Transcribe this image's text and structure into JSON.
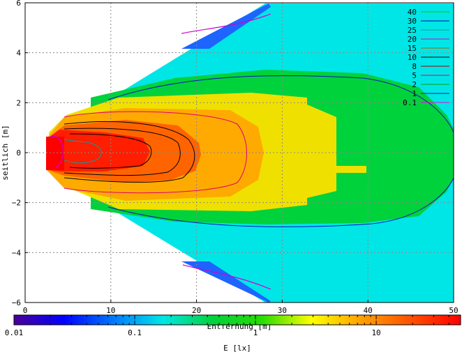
{
  "chart_data": {
    "type": "heatmap",
    "xlabel": "Entfernung [m]",
    "ylabel": "seitlich [m]",
    "xlim": [
      0,
      50
    ],
    "ylim": [
      -6,
      6
    ],
    "x_ticks": [
      0,
      10,
      20,
      30,
      40,
      50
    ],
    "y_ticks": [
      -6,
      -4,
      -2,
      0,
      2,
      4,
      6
    ],
    "grid": true,
    "legend_position": "top-right",
    "contour_levels": [
      {
        "level": "40",
        "color": "#00c000"
      },
      {
        "level": "30",
        "color": "#0000b0"
      },
      {
        "level": "25",
        "color": "#00a0a0"
      },
      {
        "level": "20",
        "color": "#d000d0"
      },
      {
        "level": "15",
        "color": "#b06000"
      },
      {
        "level": "10",
        "color": "#000000"
      },
      {
        "level": "8",
        "color": "#a00000"
      },
      {
        "level": "5",
        "color": "#e00070"
      },
      {
        "level": "2",
        "color": "#00a000"
      },
      {
        "level": "1",
        "color": "#1010c0"
      },
      {
        "level": "0.1",
        "color": "#e010e0"
      }
    ],
    "colorbar": {
      "label": "E [lx]",
      "scale": "log",
      "range": [
        0.01,
        50
      ],
      "tick_labels": [
        "0.01",
        "0.1",
        "1",
        "10"
      ],
      "tick_values": [
        0.01,
        0.1,
        1,
        10
      ],
      "colors": [
        "#4b0096",
        "#0000ff",
        "#0078ff",
        "#00e6e6",
        "#00d23c",
        "#28dc00",
        "#ffff00",
        "#ffa000",
        "#ff5000",
        "#ff0000"
      ]
    }
  }
}
